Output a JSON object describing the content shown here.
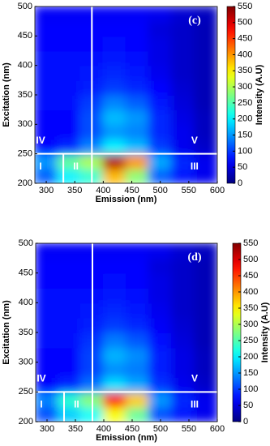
{
  "chart_data": [
    {
      "type": "heatmap",
      "label": "(c)",
      "x_label": "Emission (nm)",
      "y_label": "Excitation (nm)",
      "colorbar_label": "Intensity (A.U)",
      "x": [
        300,
        340,
        380,
        420,
        460,
        500,
        540,
        580
      ],
      "y": [
        212.5,
        237.5,
        262.5,
        287.5,
        312.5,
        337.5,
        362.5,
        387.5,
        412.5,
        437.5,
        462.5,
        487.5
      ],
      "z": [
        [
          120,
          200,
          230,
          380,
          280,
          120,
          80,
          60
        ],
        [
          150,
          260,
          300,
          520,
          400,
          160,
          90,
          60
        ],
        [
          70,
          90,
          140,
          200,
          170,
          100,
          60,
          40
        ],
        [
          70,
          70,
          110,
          150,
          140,
          90,
          60,
          35
        ],
        [
          70,
          70,
          110,
          170,
          150,
          90,
          55,
          35
        ],
        [
          75,
          75,
          100,
          140,
          120,
          80,
          50,
          30
        ],
        [
          75,
          75,
          85,
          100,
          90,
          70,
          45,
          30
        ],
        [
          75,
          75,
          80,
          90,
          80,
          60,
          40,
          30
        ],
        [
          75,
          75,
          75,
          80,
          75,
          55,
          40,
          30
        ],
        [
          70,
          70,
          70,
          75,
          70,
          55,
          40,
          30
        ],
        [
          70,
          70,
          70,
          70,
          70,
          50,
          40,
          30
        ],
        [
          65,
          65,
          65,
          65,
          65,
          60,
          45,
          35
        ]
      ],
      "xlim": [
        280,
        600
      ],
      "xticks": [
        300,
        350,
        400,
        450,
        500,
        550,
        600
      ],
      "ylim": [
        200,
        500
      ],
      "yticks": [
        200,
        250,
        300,
        350,
        400,
        450,
        500
      ],
      "zlim": [
        0,
        550
      ],
      "zticks": [
        0,
        50,
        100,
        150,
        200,
        250,
        300,
        350,
        400,
        450,
        500,
        550
      ],
      "colormap": "jet",
      "boundaries": {
        "hline": 250,
        "vlines": [
          330,
          380
        ]
      },
      "regions": [
        "I",
        "II",
        "III",
        "IV",
        "V"
      ]
    },
    {
      "type": "heatmap",
      "label": "(d)",
      "x_label": "Emission (nm)",
      "y_label": "Excitation (nm)",
      "colorbar_label": "Intensity (A.U)",
      "x": [
        300,
        340,
        380,
        420,
        460,
        500,
        540,
        580
      ],
      "y": [
        212.5,
        237.5,
        262.5,
        287.5,
        312.5,
        337.5,
        362.5,
        387.5,
        412.5,
        437.5,
        462.5,
        487.5
      ],
      "z": [
        [
          110,
          180,
          210,
          340,
          260,
          110,
          80,
          60
        ],
        [
          140,
          230,
          280,
          480,
          370,
          150,
          90,
          60
        ],
        [
          70,
          90,
          130,
          190,
          160,
          95,
          60,
          40
        ],
        [
          70,
          70,
          105,
          145,
          135,
          85,
          55,
          35
        ],
        [
          70,
          70,
          105,
          165,
          145,
          85,
          55,
          35
        ],
        [
          75,
          75,
          95,
          135,
          115,
          75,
          50,
          30
        ],
        [
          75,
          75,
          85,
          100,
          90,
          65,
          45,
          30
        ],
        [
          75,
          75,
          80,
          90,
          80,
          60,
          40,
          30
        ],
        [
          75,
          75,
          75,
          80,
          75,
          55,
          40,
          30
        ],
        [
          70,
          70,
          70,
          75,
          70,
          55,
          40,
          30
        ],
        [
          70,
          70,
          70,
          70,
          70,
          50,
          40,
          30
        ],
        [
          65,
          65,
          65,
          65,
          65,
          60,
          45,
          35
        ]
      ],
      "xlim": [
        280,
        600
      ],
      "xticks": [
        300,
        350,
        400,
        450,
        500,
        550,
        600
      ],
      "ylim": [
        200,
        500
      ],
      "yticks": [
        200,
        250,
        300,
        350,
        400,
        450,
        500
      ],
      "zlim": [
        0,
        550
      ],
      "zticks": [
        0,
        50,
        100,
        150,
        200,
        250,
        300,
        350,
        400,
        450,
        500,
        550
      ],
      "colormap": "jet",
      "boundaries": {
        "hline": 250,
        "vlines": [
          330,
          380
        ]
      },
      "regions": [
        "I",
        "II",
        "III",
        "IV",
        "V"
      ]
    }
  ]
}
